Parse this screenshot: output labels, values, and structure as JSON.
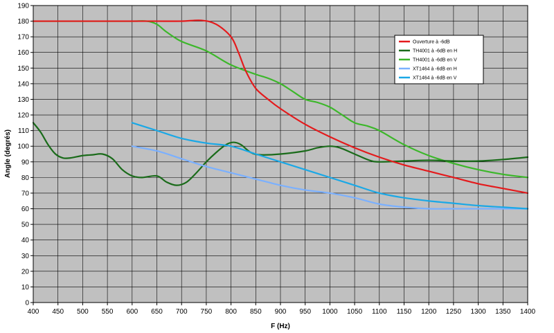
{
  "chart_data": {
    "type": "line",
    "title": "",
    "xlabel": "F (Hz)",
    "ylabel": "Angle (degrés)",
    "xlim": [
      400,
      1400
    ],
    "ylim": [
      0,
      190
    ],
    "x_ticks": [
      400,
      450,
      500,
      550,
      600,
      650,
      700,
      750,
      800,
      850,
      900,
      950,
      1000,
      1050,
      1100,
      1150,
      1200,
      1250,
      1300,
      1350,
      1400
    ],
    "y_ticks": [
      0,
      10,
      20,
      30,
      40,
      50,
      60,
      70,
      80,
      90,
      100,
      110,
      120,
      130,
      140,
      150,
      160,
      170,
      180,
      190
    ],
    "grid": true,
    "background": "#c0c0c0",
    "legend_position": "top-right",
    "series": [
      {
        "name": "Ouverture à -6dB",
        "color": "#e41a1c",
        "points": [
          [
            400,
            180
          ],
          [
            450,
            180
          ],
          [
            500,
            180
          ],
          [
            550,
            180
          ],
          [
            600,
            180
          ],
          [
            650,
            180
          ],
          [
            700,
            180
          ],
          [
            740,
            180.5
          ],
          [
            770,
            178
          ],
          [
            800,
            170
          ],
          [
            815,
            160
          ],
          [
            830,
            148
          ],
          [
            850,
            137
          ],
          [
            875,
            130
          ],
          [
            900,
            124
          ],
          [
            950,
            114
          ],
          [
            1000,
            106
          ],
          [
            1050,
            99
          ],
          [
            1100,
            93
          ],
          [
            1150,
            88
          ],
          [
            1200,
            84
          ],
          [
            1250,
            80
          ],
          [
            1300,
            76
          ],
          [
            1350,
            73
          ],
          [
            1400,
            70
          ]
        ]
      },
      {
        "name": "TH4001 à -6dB en H",
        "color": "#1a6b1a",
        "points": [
          [
            400,
            115
          ],
          [
            415,
            109
          ],
          [
            430,
            101
          ],
          [
            445,
            95
          ],
          [
            460,
            92.5
          ],
          [
            475,
            92.5
          ],
          [
            500,
            94
          ],
          [
            520,
            94.5
          ],
          [
            540,
            95
          ],
          [
            560,
            92
          ],
          [
            580,
            85
          ],
          [
            600,
            81
          ],
          [
            620,
            80
          ],
          [
            650,
            81
          ],
          [
            670,
            77
          ],
          [
            690,
            75
          ],
          [
            710,
            77
          ],
          [
            730,
            83
          ],
          [
            750,
            90
          ],
          [
            770,
            96
          ],
          [
            790,
            101
          ],
          [
            805,
            102.5
          ],
          [
            820,
            101
          ],
          [
            840,
            96
          ],
          [
            860,
            94.5
          ],
          [
            900,
            95
          ],
          [
            950,
            97
          ],
          [
            975,
            99
          ],
          [
            1000,
            100
          ],
          [
            1020,
            99
          ],
          [
            1050,
            95
          ],
          [
            1080,
            91
          ],
          [
            1100,
            90
          ],
          [
            1150,
            90.5
          ],
          [
            1200,
            91
          ],
          [
            1250,
            90.5
          ],
          [
            1300,
            90.5
          ],
          [
            1350,
            91.5
          ],
          [
            1400,
            93
          ]
        ]
      },
      {
        "name": "TH4001 à -6dB en V",
        "color": "#3cb72a",
        "points": [
          [
            400,
            180
          ],
          [
            450,
            180
          ],
          [
            500,
            180
          ],
          [
            550,
            180
          ],
          [
            600,
            180
          ],
          [
            630,
            180
          ],
          [
            650,
            178
          ],
          [
            670,
            173
          ],
          [
            700,
            167
          ],
          [
            750,
            161
          ],
          [
            800,
            152
          ],
          [
            850,
            146
          ],
          [
            875,
            143.5
          ],
          [
            900,
            140
          ],
          [
            925,
            135
          ],
          [
            950,
            130
          ],
          [
            975,
            128
          ],
          [
            1000,
            125
          ],
          [
            1025,
            120
          ],
          [
            1050,
            115
          ],
          [
            1075,
            113
          ],
          [
            1100,
            110
          ],
          [
            1150,
            101
          ],
          [
            1200,
            94
          ],
          [
            1250,
            89
          ],
          [
            1300,
            85
          ],
          [
            1350,
            82
          ],
          [
            1400,
            80
          ]
        ]
      },
      {
        "name": "XT1464 à -6dB en H",
        "color": "#7ab0ff",
        "points": [
          [
            600,
            100
          ],
          [
            650,
            97
          ],
          [
            700,
            92
          ],
          [
            750,
            87
          ],
          [
            800,
            83
          ],
          [
            850,
            79
          ],
          [
            900,
            75
          ],
          [
            950,
            72
          ],
          [
            1000,
            70
          ],
          [
            1050,
            67
          ],
          [
            1100,
            63
          ],
          [
            1150,
            61
          ],
          [
            1200,
            60
          ],
          [
            1250,
            60
          ],
          [
            1300,
            60
          ],
          [
            1350,
            60
          ],
          [
            1400,
            60
          ]
        ]
      },
      {
        "name": "XT1464 à -6dB en V",
        "color": "#1aa8e6",
        "points": [
          [
            600,
            115
          ],
          [
            650,
            110
          ],
          [
            700,
            105
          ],
          [
            750,
            102
          ],
          [
            800,
            100
          ],
          [
            850,
            95
          ],
          [
            900,
            90
          ],
          [
            950,
            85
          ],
          [
            1000,
            80
          ],
          [
            1050,
            75
          ],
          [
            1100,
            70
          ],
          [
            1150,
            67
          ],
          [
            1200,
            65
          ],
          [
            1250,
            63.5
          ],
          [
            1300,
            62
          ],
          [
            1350,
            61
          ],
          [
            1400,
            60
          ]
        ]
      }
    ]
  }
}
